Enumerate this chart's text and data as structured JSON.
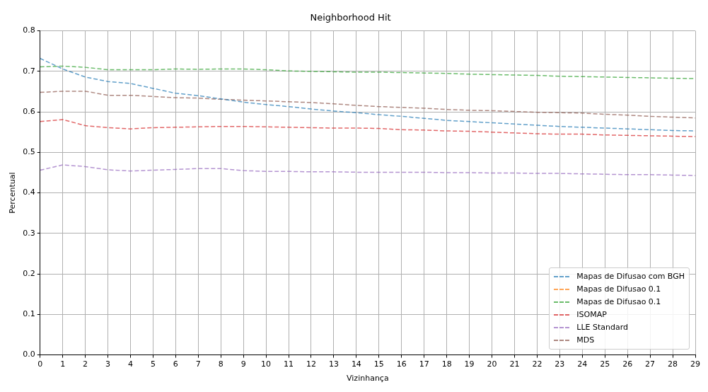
{
  "chart_data": {
    "type": "line",
    "title": "Neighborhood Hit",
    "xlabel": "Vizinhança",
    "ylabel": "Percentual",
    "x": [
      0,
      1,
      2,
      3,
      4,
      5,
      6,
      7,
      8,
      9,
      10,
      11,
      12,
      13,
      14,
      15,
      16,
      17,
      18,
      19,
      20,
      21,
      22,
      23,
      24,
      25,
      26,
      27,
      28,
      29
    ],
    "series": [
      {
        "name": "Mapas de Difusao com BGH",
        "color": "#1f77b4",
        "values": [
          0.732,
          0.706,
          0.686,
          0.675,
          0.67,
          0.658,
          0.646,
          0.64,
          0.632,
          0.624,
          0.618,
          0.613,
          0.607,
          0.602,
          0.598,
          0.593,
          0.589,
          0.584,
          0.579,
          0.576,
          0.573,
          0.57,
          0.567,
          0.564,
          0.562,
          0.56,
          0.558,
          0.556,
          0.554,
          0.553
        ]
      },
      {
        "name": "Mapas de Difusao 0.1",
        "color": "#ff7f0e",
        "values": [
          null,
          null,
          null,
          null,
          null,
          null,
          null,
          null,
          null,
          null,
          null,
          null,
          null,
          null,
          null,
          null,
          null,
          null,
          null,
          null,
          null,
          null,
          null,
          null,
          null,
          null,
          null,
          null,
          null,
          null
        ]
      },
      {
        "name": "Mapas de Difusao 0.1",
        "color": "#2ca02c",
        "values": [
          0.711,
          0.713,
          0.71,
          0.704,
          0.704,
          0.704,
          0.706,
          0.705,
          0.706,
          0.706,
          0.704,
          0.701,
          0.7,
          0.699,
          0.698,
          0.698,
          0.697,
          0.696,
          0.695,
          0.693,
          0.692,
          0.691,
          0.69,
          0.688,
          0.687,
          0.686,
          0.685,
          0.684,
          0.683,
          0.682
        ]
      },
      {
        "name": "ISOMAP",
        "color": "#d62728",
        "values": [
          0.576,
          0.581,
          0.566,
          0.561,
          0.558,
          0.561,
          0.562,
          0.563,
          0.564,
          0.564,
          0.563,
          0.562,
          0.561,
          0.56,
          0.56,
          0.559,
          0.556,
          0.555,
          0.553,
          0.552,
          0.55,
          0.548,
          0.546,
          0.545,
          0.545,
          0.543,
          0.542,
          0.541,
          0.54,
          0.539
        ]
      },
      {
        "name": "LLE Standard",
        "color": "#9467bd",
        "values": [
          0.456,
          0.469,
          0.465,
          0.457,
          0.454,
          0.456,
          0.458,
          0.46,
          0.46,
          0.455,
          0.453,
          0.453,
          0.452,
          0.452,
          0.451,
          0.451,
          0.451,
          0.451,
          0.45,
          0.45,
          0.449,
          0.449,
          0.448,
          0.448,
          0.447,
          0.446,
          0.445,
          0.445,
          0.444,
          0.443
        ]
      },
      {
        "name": "MDS",
        "color": "#8c564b",
        "values": [
          0.648,
          0.651,
          0.651,
          0.641,
          0.641,
          0.638,
          0.635,
          0.634,
          0.631,
          0.629,
          0.627,
          0.625,
          0.623,
          0.62,
          0.616,
          0.613,
          0.611,
          0.609,
          0.606,
          0.604,
          0.603,
          0.601,
          0.599,
          0.598,
          0.597,
          0.594,
          0.592,
          0.589,
          0.587,
          0.585
        ]
      }
    ],
    "xlim": [
      0,
      29
    ],
    "xticks": [
      0,
      1,
      2,
      3,
      4,
      5,
      6,
      7,
      8,
      9,
      10,
      11,
      12,
      13,
      14,
      15,
      16,
      17,
      18,
      19,
      20,
      21,
      22,
      23,
      24,
      25,
      26,
      27,
      28,
      29
    ],
    "ylim": [
      0,
      0.8
    ],
    "yticks": [
      {
        "value": 0,
        "label": "0.0"
      },
      0.1,
      0.2,
      0.3,
      0.4,
      0.5,
      0.6,
      0.7,
      0.8
    ],
    "grid": true,
    "legend": "bottom right",
    "line_style": "dashed",
    "marker": "none"
  }
}
